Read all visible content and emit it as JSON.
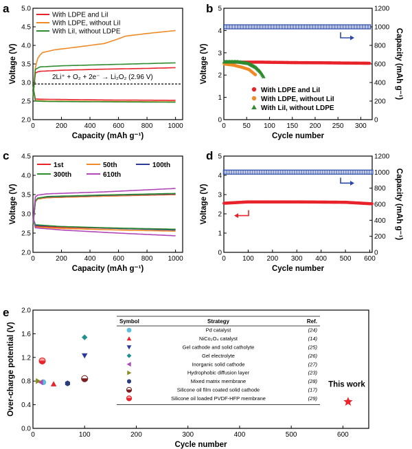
{
  "chart_data": [
    {
      "panel": "a",
      "type": "line",
      "xlabel": "Capacity (mAh g⁻¹)",
      "ylabel": "Voltage (V)",
      "xlim": [
        0,
        1050
      ],
      "ylim": [
        2.0,
        5.0
      ],
      "xticks": [
        "0",
        "200",
        "400",
        "600",
        "800",
        "1000"
      ],
      "yticks": [
        "2.0",
        "2.5",
        "3.0",
        "3.5",
        "4.0",
        "4.5",
        "5.0"
      ],
      "legend_position": "top-left",
      "annotation": "2Li⁺ + O₂ + 2e⁻ → Li₂O₂ (2.96 V)",
      "reference_line": 2.96,
      "series": [
        {
          "name": "With LDPE and LiI",
          "color": "#e8232a",
          "charge": [
            [
              0,
              2.6
            ],
            [
              5,
              3.0
            ],
            [
              15,
              3.25
            ],
            [
              40,
              3.3
            ],
            [
              200,
              3.33
            ],
            [
              500,
              3.36
            ],
            [
              800,
              3.38
            ],
            [
              1000,
              3.4
            ]
          ],
          "discharge": [
            [
              0,
              2.9
            ],
            [
              10,
              2.56
            ],
            [
              50,
              2.55
            ],
            [
              500,
              2.53
            ],
            [
              1000,
              2.52
            ]
          ]
        },
        {
          "name": "With LDPE, without LiI",
          "color": "#f08a24",
          "charge": [
            [
              0,
              2.6
            ],
            [
              8,
              3.2
            ],
            [
              25,
              3.6
            ],
            [
              60,
              3.8
            ],
            [
              150,
              3.88
            ],
            [
              300,
              3.95
            ],
            [
              500,
              4.05
            ],
            [
              580,
              4.15
            ],
            [
              650,
              4.25
            ],
            [
              800,
              4.32
            ],
            [
              1000,
              4.4
            ]
          ],
          "discharge": [
            [
              0,
              2.9
            ],
            [
              10,
              2.52
            ],
            [
              100,
              2.5
            ],
            [
              500,
              2.49
            ],
            [
              1000,
              2.48
            ]
          ]
        },
        {
          "name": "With LiI, without LDPE",
          "color": "#2e8b2e",
          "charge": [
            [
              0,
              2.6
            ],
            [
              5,
              3.1
            ],
            [
              15,
              3.35
            ],
            [
              50,
              3.42
            ],
            [
              200,
              3.45
            ],
            [
              500,
              3.48
            ],
            [
              800,
              3.51
            ],
            [
              1000,
              3.53
            ]
          ],
          "discharge": [
            [
              0,
              2.9
            ],
            [
              10,
              2.5
            ],
            [
              100,
              2.49
            ],
            [
              500,
              2.48
            ],
            [
              1000,
              2.47
            ]
          ]
        }
      ]
    },
    {
      "panel": "b",
      "type": "scatter",
      "xlabel": "Cycle number",
      "ylabel": "Voltage (V)",
      "y2label": "Capacity (mAh g⁻¹)",
      "xlim": [
        0,
        325
      ],
      "ylim": [
        0,
        5
      ],
      "y2lim": [
        0,
        1200
      ],
      "xticks": [
        "0",
        "50",
        "100",
        "150",
        "200",
        "250",
        "300"
      ],
      "yticks": [
        "0",
        "1",
        "2",
        "3",
        "4",
        "5"
      ],
      "y2ticks": [
        "0",
        "200",
        "400",
        "600",
        "800",
        "1000",
        "1200"
      ],
      "legend_position": "bottom-right",
      "capacity": {
        "value": 1000,
        "from": 1,
        "to": 320,
        "color": "#2b4aa8"
      },
      "series": [
        {
          "name": "With LDPE and LiI",
          "color": "#e8232a",
          "marker": "circle",
          "from": 1,
          "to": 320,
          "points": [
            [
              0,
              2.56
            ],
            [
              30,
              2.58
            ],
            [
              80,
              2.58
            ],
            [
              150,
              2.56
            ],
            [
              220,
              2.55
            ],
            [
              320,
              2.53
            ]
          ]
        },
        {
          "name": "With LDPE, without LiI",
          "color": "#f08a24",
          "marker": "circle",
          "from": 1,
          "to": 70,
          "points": [
            [
              0,
              2.5
            ],
            [
              20,
              2.45
            ],
            [
              40,
              2.35
            ],
            [
              55,
              2.25
            ],
            [
              70,
              2.0
            ]
          ]
        },
        {
          "name": "With LiI, without LDPE",
          "color": "#2e8b2e",
          "marker": "triangle",
          "from": 1,
          "to": 88,
          "points": [
            [
              0,
              2.6
            ],
            [
              30,
              2.6
            ],
            [
              55,
              2.52
            ],
            [
              70,
              2.35
            ],
            [
              80,
              2.15
            ],
            [
              88,
              1.9
            ]
          ]
        }
      ]
    },
    {
      "panel": "c",
      "type": "line",
      "xlabel": "Capacity (mAh g⁻¹)",
      "ylabel": "Voltage (V)",
      "xlim": [
        0,
        1050
      ],
      "ylim": [
        2.0,
        4.5
      ],
      "xticks": [
        "0",
        "200",
        "400",
        "600",
        "800",
        "1000"
      ],
      "yticks": [
        "2.0",
        "2.5",
        "3.0",
        "3.5",
        "4.0",
        "4.5"
      ],
      "legend_position": "top",
      "series": [
        {
          "name": "1st",
          "color": "#e8232a",
          "charge": [
            [
              0,
              2.7
            ],
            [
              5,
              3.1
            ],
            [
              20,
              3.38
            ],
            [
              100,
              3.42
            ],
            [
              500,
              3.46
            ],
            [
              1000,
              3.5
            ]
          ],
          "discharge": [
            [
              0,
              2.9
            ],
            [
              10,
              2.68
            ],
            [
              200,
              2.65
            ],
            [
              600,
              2.62
            ],
            [
              1000,
              2.6
            ]
          ]
        },
        {
          "name": "50th",
          "color": "#f08a24",
          "charge": [
            [
              0,
              2.7
            ],
            [
              5,
              3.1
            ],
            [
              20,
              3.38
            ],
            [
              100,
              3.42
            ],
            [
              500,
              3.46
            ],
            [
              1000,
              3.51
            ]
          ],
          "discharge": [
            [
              0,
              2.9
            ],
            [
              10,
              2.66
            ],
            [
              200,
              2.62
            ],
            [
              600,
              2.58
            ],
            [
              1000,
              2.55
            ]
          ]
        },
        {
          "name": "100th",
          "color": "#2b3a9a",
          "charge": [
            [
              0,
              2.7
            ],
            [
              5,
              3.1
            ],
            [
              20,
              3.4
            ],
            [
              100,
              3.44
            ],
            [
              500,
              3.48
            ],
            [
              1000,
              3.52
            ]
          ],
          "discharge": [
            [
              0,
              2.9
            ],
            [
              10,
              2.7
            ],
            [
              200,
              2.67
            ],
            [
              600,
              2.62
            ],
            [
              1000,
              2.58
            ]
          ]
        },
        {
          "name": "300th",
          "color": "#2e8b2e",
          "charge": [
            [
              0,
              2.7
            ],
            [
              5,
              3.1
            ],
            [
              20,
              3.4
            ],
            [
              100,
              3.45
            ],
            [
              500,
              3.49
            ],
            [
              1000,
              3.53
            ]
          ],
          "discharge": [
            [
              0,
              2.9
            ],
            [
              10,
              2.72
            ],
            [
              200,
              2.67
            ],
            [
              600,
              2.63
            ],
            [
              1000,
              2.6
            ]
          ]
        },
        {
          "name": "610th",
          "color": "#b046b8",
          "charge": [
            [
              0,
              2.8
            ],
            [
              5,
              3.3
            ],
            [
              20,
              3.48
            ],
            [
              100,
              3.52
            ],
            [
              500,
              3.57
            ],
            [
              1000,
              3.66
            ]
          ],
          "discharge": [
            [
              0,
              2.9
            ],
            [
              10,
              2.64
            ],
            [
              200,
              2.58
            ],
            [
              600,
              2.5
            ],
            [
              1000,
              2.43
            ]
          ]
        }
      ]
    },
    {
      "panel": "d",
      "type": "scatter",
      "xlabel": "Cycle number",
      "ylabel": "Voltage (V)",
      "y2label": "Capacity (mAh g⁻¹)",
      "xlim": [
        0,
        610
      ],
      "ylim": [
        0,
        5
      ],
      "y2lim": [
        0,
        1200
      ],
      "xticks": [
        "0",
        "100",
        "200",
        "300",
        "400",
        "500",
        "600"
      ],
      "yticks": [
        "0",
        "1",
        "2",
        "3",
        "4",
        "5"
      ],
      "y2ticks": [
        "0",
        "200",
        "400",
        "600",
        "800",
        "1000",
        "1200"
      ],
      "capacity": {
        "value": 1000,
        "from": 1,
        "to": 610,
        "color": "#2b4aa8"
      },
      "series": [
        {
          "name": "",
          "color": "#e8232a",
          "marker": "circle",
          "from": 1,
          "to": 610,
          "points": [
            [
              0,
              2.55
            ],
            [
              100,
              2.62
            ],
            [
              300,
              2.62
            ],
            [
              500,
              2.6
            ],
            [
              610,
              2.52
            ]
          ]
        }
      ]
    },
    {
      "panel": "e",
      "type": "scatter",
      "xlabel": "Cycle number",
      "ylabel": "Over-charge potential (V)",
      "xlim": [
        0,
        650
      ],
      "ylim": [
        0.0,
        2.0
      ],
      "xticks": [
        "0",
        "100",
        "200",
        "300",
        "400",
        "500",
        "600"
      ],
      "yticks": [
        "0.0",
        "0.4",
        "0.8",
        "1.2",
        "1.6",
        "2.0"
      ],
      "table": {
        "headers": [
          "Symbol",
          "Strategy",
          "Ref."
        ],
        "rows": [
          {
            "strategy": "Pd catalyst",
            "ref": "(24)",
            "marker": "circle",
            "color": "#5bc0de"
          },
          {
            "strategy": "NiCo₂O₄ catalyst",
            "ref": "(14)",
            "marker": "triangle-up",
            "color": "#e8232a"
          },
          {
            "strategy": "Gel cathode and solid catholyte",
            "ref": "(25)",
            "marker": "triangle-down",
            "color": "#2b3a9a"
          },
          {
            "strategy": "Gel electrolyte",
            "ref": "(26)",
            "marker": "diamond",
            "color": "#1f8f8f"
          },
          {
            "strategy": "Inorganic solid cathode",
            "ref": "(27)",
            "marker": "triangle-left",
            "color": "#b046b8"
          },
          {
            "strategy": "Hydrophobic diffusion layer",
            "ref": "(23)",
            "marker": "triangle-right",
            "color": "#8a8a1e"
          },
          {
            "strategy": "Mixed matrix membrane",
            "ref": "(28)",
            "marker": "hexagon",
            "color": "#2b3a7a"
          },
          {
            "strategy": "Silicone oil film coated solid cathode",
            "ref": "(17)",
            "marker": "half-circle",
            "color": "#7a1f1f"
          },
          {
            "strategy": "Silicone oil loaded PVDF-HFP membrane",
            "ref": "(29)",
            "marker": "half-circle-pink",
            "color": "#e8232a"
          }
        ]
      },
      "points": [
        {
          "x": 20,
          "y": 0.78,
          "marker": "circle",
          "color": "#5bc0de"
        },
        {
          "x": 40,
          "y": 0.75,
          "marker": "triangle-up",
          "color": "#e8232a"
        },
        {
          "x": 100,
          "y": 1.23,
          "marker": "triangle-down",
          "color": "#2b3a9a"
        },
        {
          "x": 100,
          "y": 1.54,
          "marker": "diamond",
          "color": "#1f8f8f"
        },
        {
          "x": 15,
          "y": 0.78,
          "marker": "triangle-left",
          "color": "#b046b8"
        },
        {
          "x": 10,
          "y": 0.8,
          "marker": "triangle-right",
          "color": "#8a8a1e"
        },
        {
          "x": 67,
          "y": 0.76,
          "marker": "hexagon",
          "color": "#2b3a7a"
        },
        {
          "x": 100,
          "y": 0.84,
          "marker": "half-circle",
          "color": "#7a1f1f"
        },
        {
          "x": 18,
          "y": 1.14,
          "marker": "half-circle-pink",
          "color": "#e8232a"
        },
        {
          "x": 610,
          "y": 0.45,
          "marker": "star",
          "color": "#e8232a"
        }
      ],
      "annotation": "This work"
    }
  ]
}
